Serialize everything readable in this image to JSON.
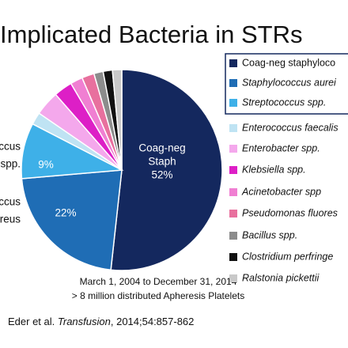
{
  "chart_data": {
    "type": "pie",
    "title": "Implicated Bacteria in STRs",
    "categories": [
      "Coag-neg staphyloco",
      "Staphylococcus aurei",
      "Streptococcus  spp.",
      "Enterococcus faecalis",
      "Enterobacter spp.",
      "Klebsiella spp.",
      "Acinetobacter spp",
      "Pseudomonas fluores",
      "Bacillus spp.",
      "Clostridium perfringe",
      "Ralstonia pickettii"
    ],
    "values": [
      52,
      22,
      9,
      2,
      4,
      3,
      2,
      2,
      1.5,
      1.5,
      1.5
    ],
    "value_labels": [
      "52%",
      "22%",
      "9%",
      null,
      null,
      null,
      null,
      null,
      null,
      null,
      null
    ],
    "slice_labels": [
      [
        "Coag-neg",
        "Staph"
      ],
      null,
      null,
      null,
      null,
      null,
      null,
      null,
      null,
      null,
      null
    ],
    "outer_labels": [
      null,
      [
        "ococcus",
        "ureus"
      ],
      [
        "ccus",
        "spp."
      ],
      null,
      null,
      null,
      null,
      null,
      null,
      null,
      null
    ],
    "colors": [
      "#14285e",
      "#1f6db5",
      "#3eb0e8",
      "#bfe3f3",
      "#f4a8ec",
      "#dd1fc6",
      "#f07fd2",
      "#e8709e",
      "#8c8c8c",
      "#111111",
      "#c9c9c9"
    ],
    "notes": [
      "March 1, 2004 to December 31, 2014",
      "> 8 million distributed Apheresis Platelets"
    ],
    "citation": {
      "authors": "Eder et al.",
      "journal": "Transfusion",
      "reference": ", 2014;54:857-862"
    }
  }
}
